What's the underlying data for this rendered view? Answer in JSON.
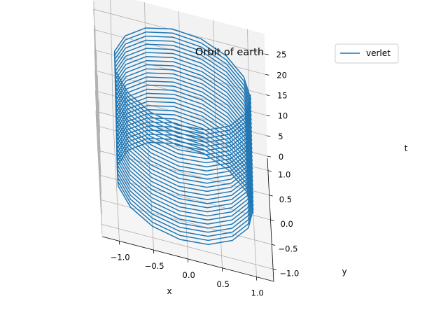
{
  "chart_data": {
    "type": "line",
    "projection": "3d",
    "title": "Orbit of earth",
    "xlabel": "x",
    "ylabel": "y",
    "zlabel": "t",
    "xlim": [
      -1.25,
      1.25
    ],
    "ylim": [
      -1.25,
      1.25
    ],
    "zlim": [
      -0.5,
      30
    ],
    "x_ticks": [
      "−1.0",
      "−0.5",
      "0.0",
      "0.5",
      "1.0"
    ],
    "y_ticks": [
      "−1.0",
      "−0.5",
      "0.0",
      "0.5",
      "1.0"
    ],
    "z_ticks": [
      "0",
      "5",
      "10",
      "15",
      "20",
      "25"
    ],
    "grid": true,
    "legend": {
      "position": "top-right",
      "entries": [
        "verlet"
      ]
    },
    "series": [
      {
        "name": "verlet",
        "color": "#1f77b4",
        "description_of_data": "helix x=cos(2*pi*t), y=sin(2*pi*t), t from 0 to 29",
        "t_start": 0,
        "t_end": 29,
        "period": 1,
        "radius": 1,
        "samples_per_period": 15
      }
    ]
  }
}
